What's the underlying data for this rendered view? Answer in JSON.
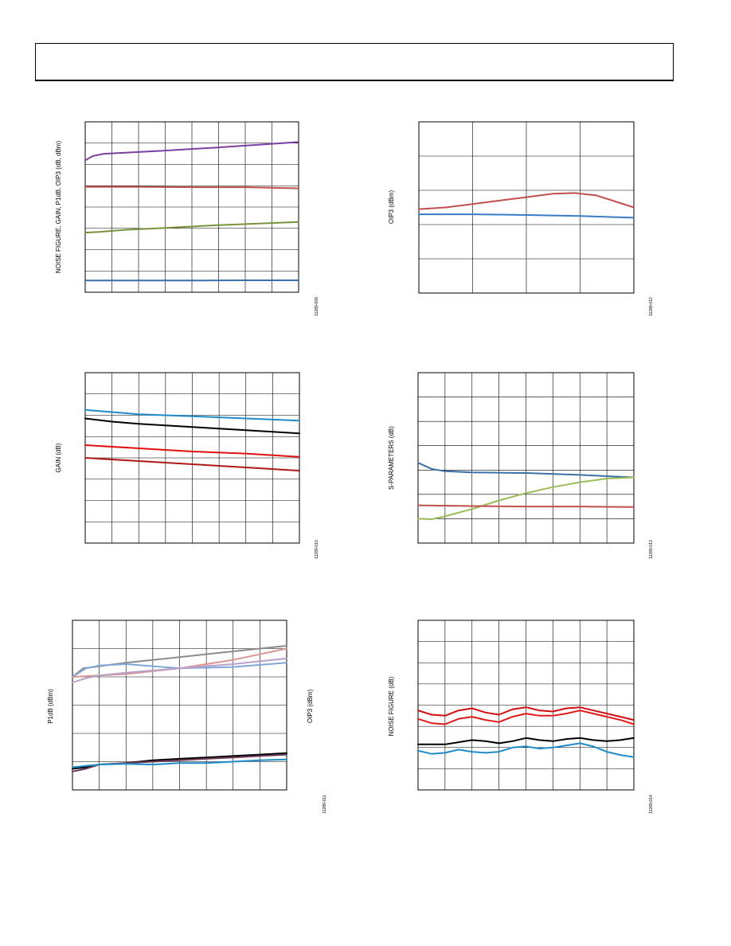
{
  "page": {
    "header_text": ""
  },
  "chart_data": [
    {
      "id": "c1",
      "type": "line",
      "ylabel": "NOISE FIGURE, GAIN, P1dB, OIP3 (dB, dBm)",
      "fig_id": "11289-009",
      "grid": {
        "cols": 8,
        "rows": 8
      },
      "xlim": [
        0,
        8
      ],
      "ylim": [
        0,
        8
      ],
      "series": [
        {
          "color": "#7b3fa0",
          "x": [
            0,
            0.3,
            0.7,
            1.5,
            3,
            5,
            8
          ],
          "y": [
            6.2,
            6.4,
            6.5,
            6.55,
            6.65,
            6.8,
            7.05
          ]
        },
        {
          "color": "#c0504d",
          "x": [
            0,
            2,
            4,
            6,
            8
          ],
          "y": [
            4.95,
            4.95,
            4.93,
            4.93,
            4.88
          ]
        },
        {
          "color": "#77933c",
          "x": [
            0,
            0.5,
            1.5,
            3,
            5,
            8
          ],
          "y": [
            2.8,
            2.83,
            2.93,
            3.02,
            3.15,
            3.3
          ]
        },
        {
          "color": "#3a6fa8",
          "x": [
            0,
            2,
            4,
            6,
            8
          ],
          "y": [
            0.55,
            0.55,
            0.55,
            0.56,
            0.56
          ]
        }
      ]
    },
    {
      "id": "c2",
      "type": "line",
      "ylabel": "OIP3 (dBm)",
      "fig_id": "11289-012",
      "grid": {
        "cols": 4,
        "rows": 5
      },
      "xlim": [
        0,
        4
      ],
      "ylim": [
        0,
        5
      ],
      "series": [
        {
          "color": "#c0504d",
          "x": [
            0,
            0.5,
            1,
            1.5,
            2,
            2.5,
            2.9,
            3.3,
            3.7,
            4
          ],
          "y": [
            2.45,
            2.5,
            2.6,
            2.7,
            2.8,
            2.9,
            2.92,
            2.85,
            2.65,
            2.5
          ]
        },
        {
          "color": "#3a7bc8",
          "x": [
            0,
            1,
            2,
            3,
            4
          ],
          "y": [
            2.3,
            2.3,
            2.28,
            2.25,
            2.2
          ]
        }
      ]
    },
    {
      "id": "c3",
      "type": "line",
      "ylabel": "GAIN (dB)",
      "fig_id": "11289-010",
      "grid": {
        "cols": 8,
        "rows": 8
      },
      "xlim": [
        0,
        8
      ],
      "ylim": [
        0,
        8
      ],
      "series": [
        {
          "color": "#1f8bc8",
          "x": [
            0,
            1,
            2,
            4,
            6,
            8
          ],
          "y": [
            6.25,
            6.15,
            6.05,
            5.95,
            5.85,
            5.75
          ]
        },
        {
          "color": "#000000",
          "x": [
            0,
            1,
            2,
            4,
            6,
            8
          ],
          "y": [
            5.85,
            5.7,
            5.6,
            5.45,
            5.3,
            5.15
          ]
        },
        {
          "color": "#e01010",
          "x": [
            0,
            2,
            4,
            6,
            8
          ],
          "y": [
            4.6,
            4.45,
            4.3,
            4.2,
            4.05
          ]
        },
        {
          "color": "#b01818",
          "x": [
            0,
            2,
            4,
            6,
            8
          ],
          "y": [
            4.0,
            3.85,
            3.7,
            3.55,
            3.4
          ]
        }
      ]
    },
    {
      "id": "c4",
      "type": "line",
      "ylabel": "S-PARAMETERS (dB)",
      "fig_id": "11289-013",
      "grid": {
        "cols": 8,
        "rows": 7
      },
      "xlim": [
        0,
        8
      ],
      "ylim": [
        0,
        7
      ],
      "series": [
        {
          "color": "#3a6fa8",
          "x": [
            0,
            0.5,
            1,
            2,
            4,
            6,
            8
          ],
          "y": [
            3.3,
            3.05,
            2.95,
            2.9,
            2.88,
            2.8,
            2.7
          ]
        },
        {
          "color": "#9bbb59",
          "x": [
            0,
            0.5,
            1,
            2,
            3,
            4,
            5,
            6,
            7,
            8
          ],
          "y": [
            1.0,
            0.98,
            1.1,
            1.4,
            1.75,
            2.05,
            2.3,
            2.5,
            2.65,
            2.7
          ]
        },
        {
          "color": "#c0504d",
          "x": [
            0,
            2,
            4,
            6,
            8
          ],
          "y": [
            1.55,
            1.52,
            1.5,
            1.5,
            1.48
          ]
        }
      ]
    },
    {
      "id": "c5",
      "type": "line",
      "ylabel": "P1dB (dBm)",
      "ylabel_right": "OIP3 (dBm)",
      "fig_id": "11289-011",
      "grid": {
        "cols": 8,
        "rows": 6
      },
      "xlim": [
        0,
        8
      ],
      "ylim": [
        0,
        6
      ],
      "series": [
        {
          "color": "#8c8c8c",
          "x": [
            0,
            0.4,
            0.8,
            2,
            4,
            6,
            8
          ],
          "y": [
            4.0,
            4.3,
            4.35,
            4.5,
            4.7,
            4.9,
            5.1
          ]
        },
        {
          "color": "#7fa6d6",
          "x": [
            0,
            0.5,
            1,
            2,
            4,
            6,
            8
          ],
          "y": [
            4.0,
            4.3,
            4.4,
            4.45,
            4.3,
            4.35,
            4.5
          ]
        },
        {
          "color": "#d99694",
          "x": [
            0,
            1,
            2,
            4,
            6,
            8
          ],
          "y": [
            4.0,
            4.05,
            4.1,
            4.3,
            4.6,
            5.0
          ]
        },
        {
          "color": "#b7a0c9",
          "x": [
            0,
            0.5,
            1,
            2,
            4,
            6,
            8
          ],
          "y": [
            3.8,
            3.95,
            4.05,
            4.15,
            4.3,
            4.45,
            4.65
          ]
        },
        {
          "color": "#000000",
          "x": [
            0,
            0.5,
            1,
            2,
            3,
            4,
            5,
            6,
            7,
            8
          ],
          "y": [
            0.75,
            0.8,
            0.9,
            0.95,
            1.05,
            1.1,
            1.15,
            1.2,
            1.25,
            1.3
          ]
        },
        {
          "color": "#6b3a5a",
          "x": [
            0,
            0.5,
            1,
            2,
            3,
            4,
            5,
            6,
            7,
            8
          ],
          "y": [
            0.65,
            0.75,
            0.9,
            0.95,
            1.0,
            1.05,
            1.1,
            1.15,
            1.2,
            1.25
          ]
        },
        {
          "color": "#1f8bc8",
          "x": [
            0,
            0.5,
            1,
            2,
            3,
            4,
            5,
            6,
            7,
            8
          ],
          "y": [
            0.8,
            0.85,
            0.9,
            0.92,
            0.9,
            0.95,
            0.95,
            1.0,
            1.05,
            1.08
          ]
        }
      ]
    },
    {
      "id": "c6",
      "type": "line",
      "ylabel": "NOISE FIGURE (dB)",
      "fig_id": "11289-014",
      "grid": {
        "cols": 8,
        "rows": 8
      },
      "xlim": [
        0,
        8
      ],
      "ylim": [
        0,
        8
      ],
      "series": [
        {
          "color": "#d01010",
          "x": [
            0,
            0.5,
            1,
            1.5,
            2,
            2.5,
            3,
            3.5,
            4,
            4.5,
            5,
            5.5,
            6,
            6.5,
            7,
            7.5,
            8
          ],
          "y": [
            3.75,
            3.55,
            3.5,
            3.75,
            3.85,
            3.65,
            3.55,
            3.8,
            3.9,
            3.75,
            3.7,
            3.85,
            3.9,
            3.75,
            3.6,
            3.45,
            3.3
          ]
        },
        {
          "color": "#e01a1a",
          "x": [
            0,
            0.5,
            1,
            1.5,
            2,
            2.5,
            3,
            3.5,
            4,
            4.5,
            5,
            5.5,
            6,
            6.5,
            7,
            7.5,
            8
          ],
          "y": [
            3.35,
            3.15,
            3.1,
            3.35,
            3.45,
            3.3,
            3.2,
            3.45,
            3.6,
            3.5,
            3.5,
            3.6,
            3.75,
            3.6,
            3.45,
            3.3,
            3.1
          ]
        },
        {
          "color": "#000000",
          "x": [
            0,
            0.5,
            1,
            1.5,
            2,
            2.5,
            3,
            3.5,
            4,
            4.5,
            5,
            5.5,
            6,
            6.5,
            7,
            7.5,
            8
          ],
          "y": [
            2.15,
            2.15,
            2.15,
            2.25,
            2.35,
            2.3,
            2.2,
            2.3,
            2.45,
            2.35,
            2.3,
            2.4,
            2.45,
            2.35,
            2.3,
            2.35,
            2.45
          ]
        },
        {
          "color": "#1f8bc8",
          "x": [
            0,
            0.5,
            1,
            1.5,
            2,
            2.5,
            3,
            3.5,
            4,
            4.5,
            5,
            5.5,
            6,
            6.5,
            7,
            7.5,
            8
          ],
          "y": [
            1.85,
            1.7,
            1.75,
            1.9,
            1.8,
            1.75,
            1.8,
            2.0,
            2.05,
            1.95,
            2.0,
            2.1,
            2.2,
            2.05,
            1.8,
            1.65,
            1.55
          ]
        }
      ]
    }
  ]
}
